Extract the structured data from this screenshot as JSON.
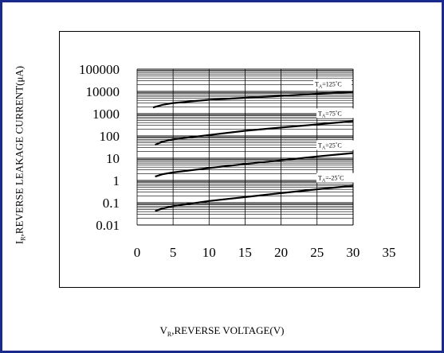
{
  "chart_data": {
    "type": "line",
    "xlabel_main": "V",
    "xlabel_sub": "R",
    "xlabel_rest": ",REVERSE VOLTAGE(V)",
    "ylabel_main": "I",
    "ylabel_sub": "R",
    "ylabel_rest": ",REVERSE LEAKAGE CURRENT(μA)",
    "x_scale": "linear",
    "y_scale": "log",
    "xlim": [
      0,
      35
    ],
    "ylim": [
      0.01,
      100000
    ],
    "x_ticks": [
      "0",
      "5",
      "10",
      "15",
      "20",
      "25",
      "30",
      "35"
    ],
    "y_ticks": [
      "0.01",
      "0.1",
      "1",
      "10",
      "100",
      "1000",
      "10000",
      "100000"
    ],
    "grid": true,
    "series": [
      {
        "name_main": "T",
        "name_sub": "A",
        "name_rest": "=125˚C",
        "x": [
          2.2,
          3.5,
          5,
          10,
          15,
          20,
          25,
          30
        ],
        "y": [
          1900,
          2500,
          3000,
          4200,
          5200,
          6300,
          7800,
          9500
        ]
      },
      {
        "name_main": "T",
        "name_sub": "A",
        "name_rest": "=75˚C",
        "x": [
          2.5,
          3.5,
          5,
          10,
          15,
          20,
          25,
          30
        ],
        "y": [
          40,
          55,
          70,
          110,
          170,
          240,
          330,
          460
        ]
      },
      {
        "name_main": "T",
        "name_sub": "A",
        "name_rest": "=25˚C",
        "x": [
          2.5,
          3.5,
          5,
          10,
          15,
          20,
          25,
          30
        ],
        "y": [
          1.5,
          1.9,
          2.3,
          3.6,
          5.5,
          8.0,
          12,
          17
        ]
      },
      {
        "name_main": "T",
        "name_sub": "A",
        "name_rest": "=-25˚C",
        "x": [
          2.5,
          3.5,
          5,
          10,
          15,
          20,
          25,
          30
        ],
        "y": [
          0.042,
          0.055,
          0.07,
          0.12,
          0.18,
          0.27,
          0.4,
          0.58
        ]
      }
    ]
  }
}
